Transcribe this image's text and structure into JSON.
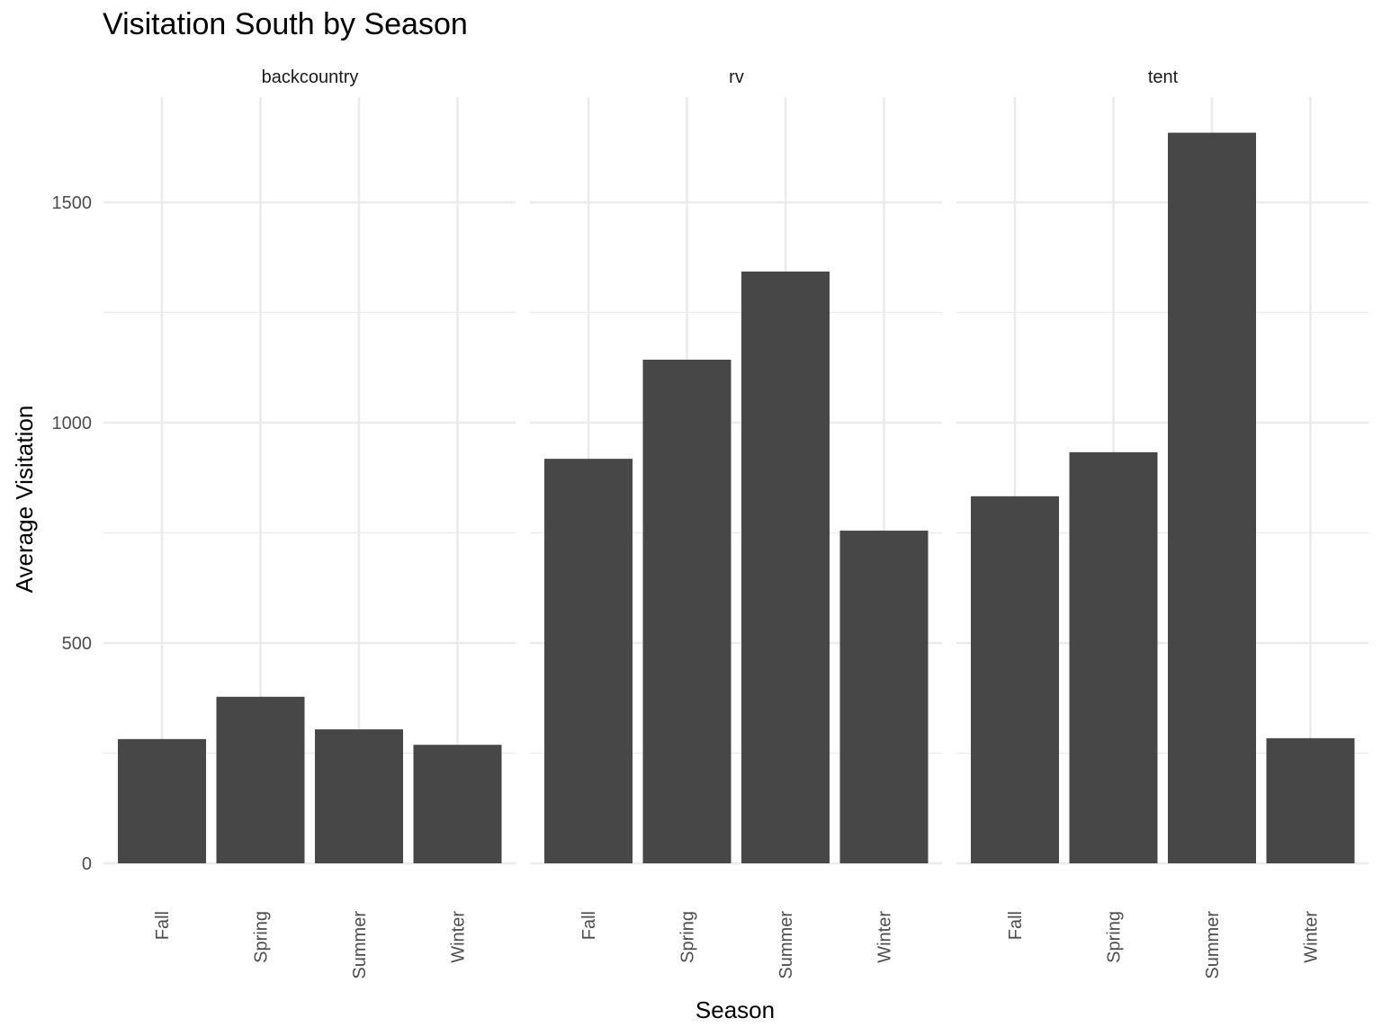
{
  "chart_data": {
    "type": "bar",
    "title": "Visitation South by Season",
    "xlabel": "Season",
    "ylabel": "Average Visitation",
    "categories": [
      "Fall",
      "Spring",
      "Summer",
      "Winter"
    ],
    "ylim": [
      0,
      1740
    ],
    "yticks": [
      0,
      500,
      1000,
      1500
    ],
    "grid": true,
    "bar_color": "#474747",
    "facets": [
      {
        "name": "backcountry",
        "values": [
          282,
          378,
          304,
          269
        ]
      },
      {
        "name": "rv",
        "values": [
          918,
          1143,
          1343,
          755
        ]
      },
      {
        "name": "tent",
        "values": [
          833,
          933,
          1658,
          284
        ]
      }
    ]
  }
}
